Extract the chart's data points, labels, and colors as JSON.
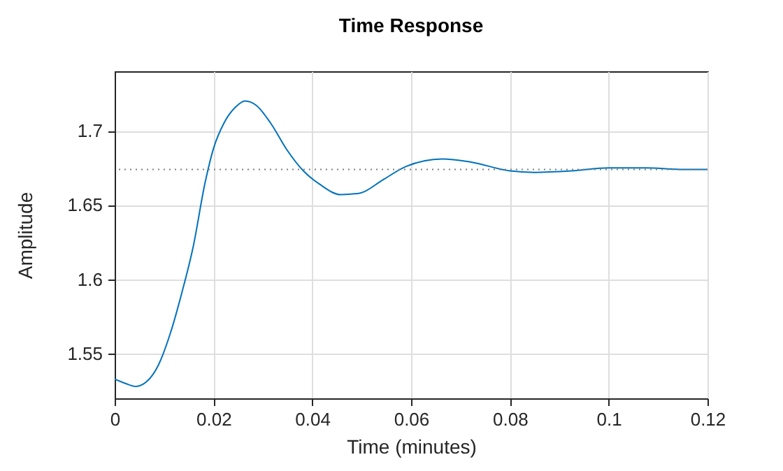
{
  "chart_data": {
    "type": "line",
    "title": "Time Response",
    "xlabel": "Time (minutes)",
    "ylabel": "Amplitude",
    "x": [
      0,
      0.0022,
      0.0043,
      0.0064,
      0.0088,
      0.0112,
      0.0136,
      0.0159,
      0.0183,
      0.02,
      0.0221,
      0.0245,
      0.0264,
      0.0287,
      0.0316,
      0.0349,
      0.0382,
      0.0415,
      0.0458,
      0.0496,
      0.0543,
      0.059,
      0.0663,
      0.072,
      0.08,
      0.085,
      0.0925,
      0.1,
      0.1077,
      0.1144,
      0.12
    ],
    "series": [
      {
        "color": "#0072bd",
        "values": [
          1.533,
          1.53,
          1.528,
          1.531,
          1.542,
          1.563,
          1.591,
          1.622,
          1.665,
          1.688,
          1.705,
          1.716,
          1.72,
          1.717,
          1.705,
          1.687,
          1.673,
          1.664,
          1.657,
          1.658,
          1.667,
          1.676,
          1.681,
          1.679,
          1.673,
          1.672,
          1.673,
          1.675,
          1.675,
          1.674,
          1.674
        ]
      }
    ],
    "xlim": [
      0,
      0.12
    ],
    "xticks": [
      0,
      0.02,
      0.04,
      0.06,
      0.08,
      0.1,
      0.12
    ],
    "ylim": [
      1.52,
      1.74
    ],
    "yticks": [
      1.55,
      1.6,
      1.65,
      1.7
    ],
    "ref_lines": [
      {
        "axis": "y",
        "value": 1.674,
        "color": "#808080",
        "line_style": "dotted"
      }
    ],
    "grid": true,
    "marker": "none",
    "line_style": "solid"
  }
}
